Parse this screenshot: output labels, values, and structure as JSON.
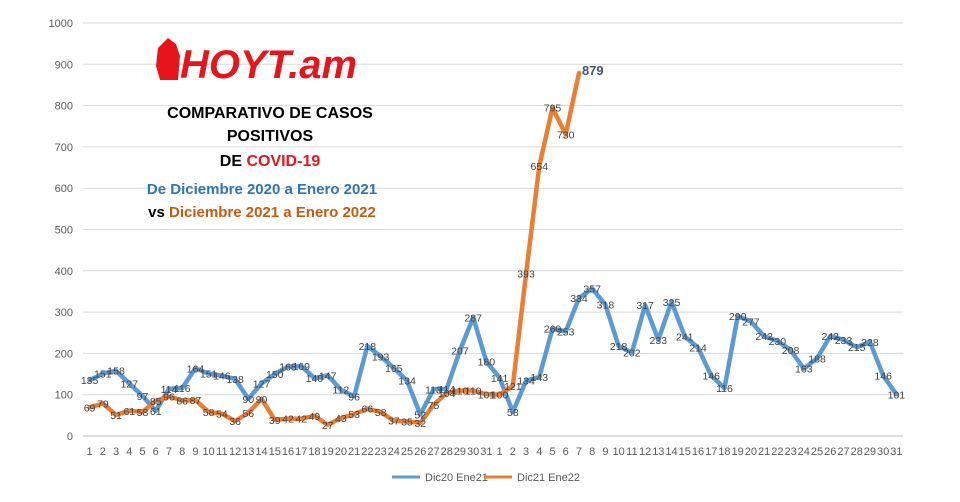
{
  "branding": {
    "logo_text": "HOYT.am"
  },
  "chart_data": {
    "type": "line",
    "title_lines": [
      "COMPARATIVO DE CASOS",
      "POSITIVOS"
    ],
    "title_line3_prefix": "DE ",
    "title_line3_highlight": "COVID-19",
    "subtitle1": "De Diciembre 2020 a Enero 2021",
    "subtitle2_prefix": "vs ",
    "subtitle2_highlight": "Diciembre 2021 a Enero 2022",
    "colors": {
      "series1": "#5b9bd5",
      "series2": "#ed7d31",
      "title_red": "#e8141c",
      "subtitle_blue": "#2e75b6",
      "subtitle_orange": "#c55a11"
    },
    "ylim": [
      0,
      1000
    ],
    "y_ticks": [
      0,
      100,
      200,
      300,
      400,
      500,
      600,
      700,
      800,
      900,
      1000
    ],
    "categories": [
      "1",
      "2",
      "3",
      "4",
      "5",
      "6",
      "7",
      "8",
      "9",
      "10",
      "11",
      "12",
      "13",
      "14",
      "15",
      "16",
      "17",
      "18",
      "19",
      "20",
      "21",
      "22",
      "23",
      "24",
      "25",
      "26",
      "27",
      "28",
      "29",
      "30",
      "31",
      "1",
      "2",
      "3",
      "4",
      "5",
      "6",
      "7",
      "8",
      "9",
      "10",
      "11",
      "12",
      "13",
      "14",
      "15",
      "16",
      "17",
      "18",
      "19",
      "20",
      "21",
      "22",
      "23",
      "24",
      "25",
      "26",
      "27",
      "28",
      "29",
      "30",
      "31"
    ],
    "legend_position": "bottom",
    "grid": true,
    "series": [
      {
        "name": "Dic20 Ene21",
        "values": [
          135,
          151,
          158,
          127,
          97,
          61,
          114,
          116,
          164,
          151,
          146,
          138,
          90,
          127,
          150,
          168,
          169,
          140,
          147,
          112,
          96,
          218,
          193,
          165,
          134,
          52,
          113,
          114,
          207,
          287,
          180,
          141,
          58,
          134,
          143,
          260,
          253,
          334,
          357,
          318,
          218,
          202,
          317,
          233,
          325,
          241,
          214,
          146,
          116,
          290,
          277,
          242,
          230,
          208,
          163,
          188,
          242,
          233,
          215,
          228,
          146,
          101
        ]
      },
      {
        "name": "Dic21 Ene22",
        "values": [
          69,
          79,
          51,
          61,
          58,
          85,
          96,
          86,
          87,
          58,
          54,
          36,
          56,
          90,
          39,
          42,
          42,
          49,
          27,
          43,
          53,
          66,
          58,
          37,
          35,
          32,
          75,
          104,
          110,
          110,
          101,
          100,
          121,
          393,
          654,
          795,
          730,
          879,
          null,
          null,
          null,
          null,
          null,
          null,
          null,
          null,
          null,
          null,
          null,
          null,
          null,
          null,
          null,
          null,
          null,
          null,
          null,
          null,
          null,
          null,
          null,
          null
        ],
        "highlight_label_index": 37
      }
    ]
  }
}
